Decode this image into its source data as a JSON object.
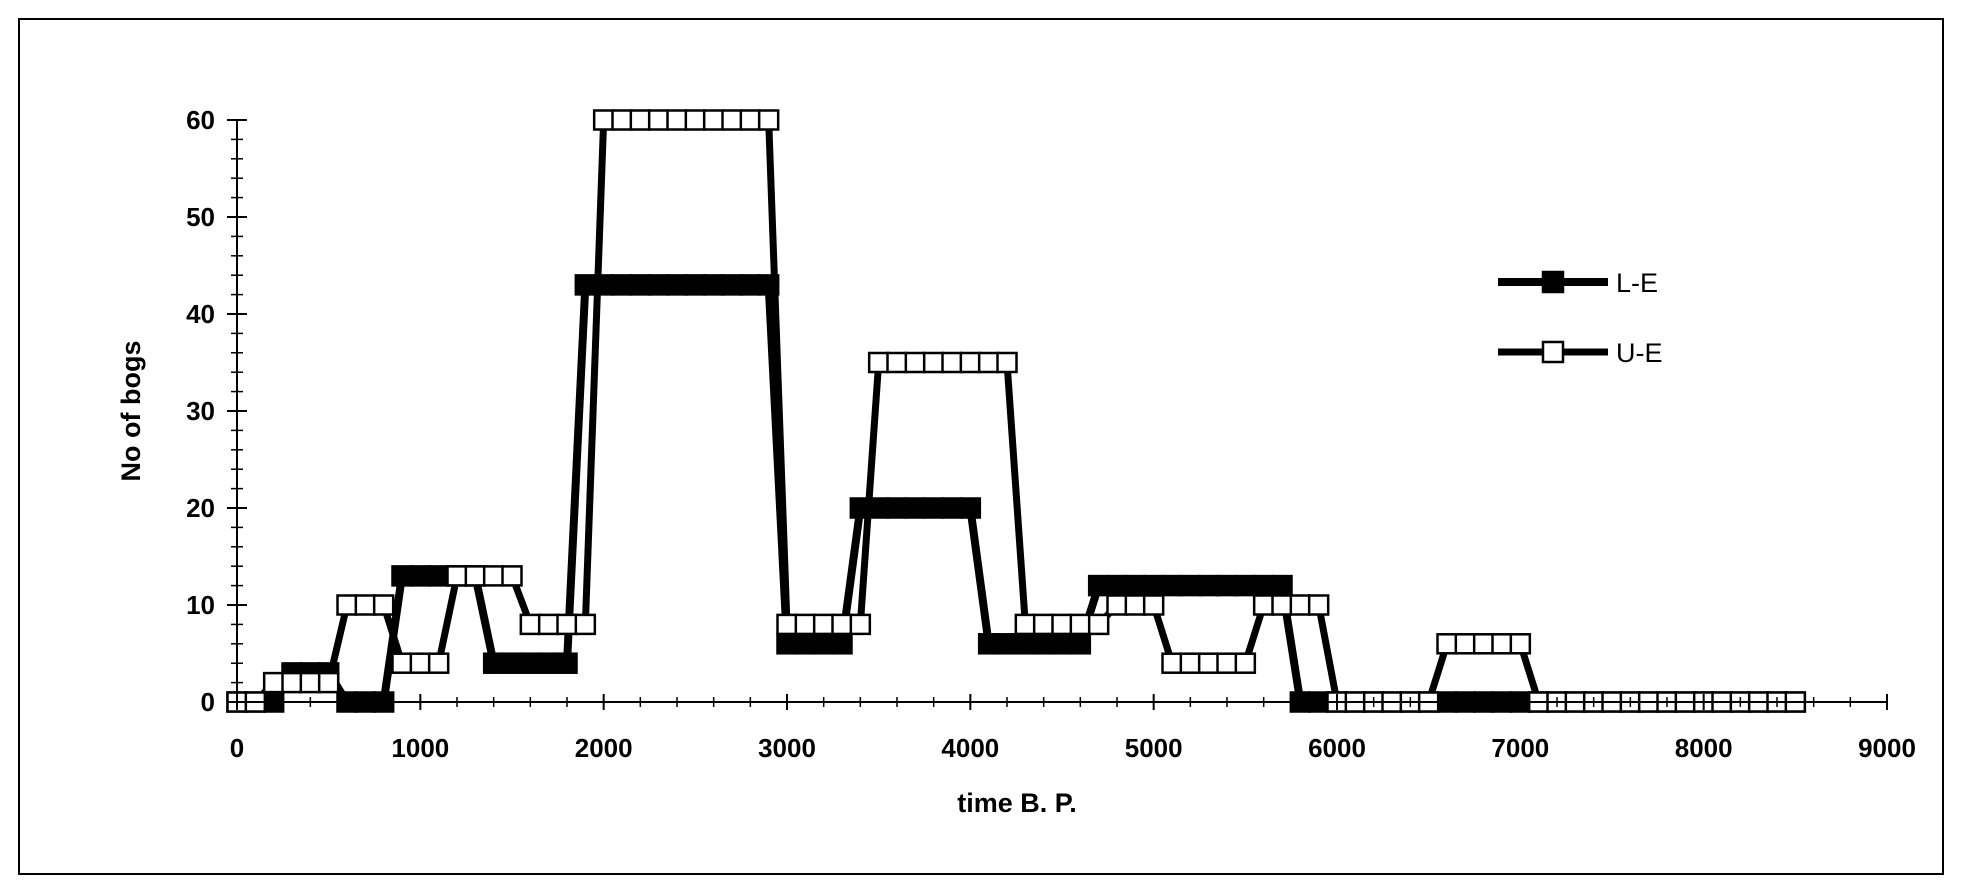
{
  "chart_data": {
    "type": "line",
    "xlabel": "time B. P.",
    "ylabel": "No of bogs",
    "xlim": [
      0,
      9000
    ],
    "ylim": [
      0,
      60
    ],
    "x_ticks": [
      0,
      1000,
      2000,
      3000,
      4000,
      5000,
      6000,
      7000,
      8000,
      9000
    ],
    "y_ticks": [
      0,
      10,
      20,
      30,
      40,
      50,
      60
    ],
    "grid": false,
    "legend_position": "right",
    "series": [
      {
        "name": "L-E",
        "color": "#000000",
        "marker": "filled-square",
        "x": [
          0,
          100,
          200,
          300,
          400,
          500,
          600,
          700,
          800,
          900,
          1000,
          1100,
          1200,
          1300,
          1400,
          1500,
          1600,
          1700,
          1800,
          1900,
          2000,
          2100,
          2200,
          2300,
          2400,
          2500,
          2600,
          2700,
          2800,
          2900,
          3000,
          3100,
          3200,
          3300,
          3400,
          3500,
          3600,
          3700,
          3800,
          3900,
          4000,
          4100,
          4200,
          4300,
          4400,
          4500,
          4600,
          4700,
          4800,
          4900,
          5000,
          5100,
          5200,
          5300,
          5400,
          5500,
          5600,
          5700,
          5800,
          5900,
          6000,
          6100,
          6200,
          6300,
          6400,
          6500,
          6600,
          6700,
          6800,
          6900,
          7000,
          7100,
          7200,
          7300,
          7400,
          7500,
          7600,
          7700,
          7800,
          7900,
          8000,
          8100,
          8200,
          8300,
          8400,
          8500
        ],
        "values": [
          0,
          0,
          0,
          3,
          3,
          3,
          0,
          0,
          0,
          13,
          13,
          13,
          13,
          13,
          4,
          4,
          4,
          4,
          4,
          43,
          43,
          43,
          43,
          43,
          43,
          43,
          43,
          43,
          43,
          43,
          6,
          6,
          6,
          6,
          20,
          20,
          20,
          20,
          20,
          20,
          20,
          6,
          6,
          6,
          6,
          6,
          6,
          12,
          12,
          12,
          12,
          12,
          12,
          12,
          12,
          12,
          12,
          12,
          0,
          0,
          0,
          0,
          0,
          0,
          0,
          0,
          0,
          0,
          0,
          0,
          0,
          0,
          0,
          0,
          0,
          0,
          0,
          0,
          0,
          0,
          0,
          0,
          0,
          0,
          0,
          0
        ]
      },
      {
        "name": "U-E",
        "color": "#000000",
        "marker": "open-square",
        "x": [
          0,
          100,
          200,
          300,
          400,
          500,
          600,
          700,
          800,
          900,
          1000,
          1100,
          1200,
          1300,
          1400,
          1500,
          1600,
          1700,
          1800,
          1900,
          2000,
          2100,
          2200,
          2300,
          2400,
          2500,
          2600,
          2700,
          2800,
          2900,
          3000,
          3100,
          3200,
          3300,
          3400,
          3500,
          3600,
          3700,
          3800,
          3900,
          4000,
          4100,
          4200,
          4300,
          4400,
          4500,
          4600,
          4700,
          4800,
          4900,
          5000,
          5100,
          5200,
          5300,
          5400,
          5500,
          5600,
          5700,
          5800,
          5900,
          6000,
          6100,
          6200,
          6300,
          6400,
          6500,
          6600,
          6700,
          6800,
          6900,
          7000,
          7100,
          7200,
          7300,
          7400,
          7500,
          7600,
          7700,
          7800,
          7900,
          8000,
          8100,
          8200,
          8300,
          8400,
          8500
        ],
        "values": [
          0,
          0,
          2,
          2,
          2,
          2,
          10,
          10,
          10,
          4,
          4,
          4,
          13,
          13,
          13,
          13,
          8,
          8,
          8,
          8,
          60,
          60,
          60,
          60,
          60,
          60,
          60,
          60,
          60,
          60,
          8,
          8,
          8,
          8,
          8,
          35,
          35,
          35,
          35,
          35,
          35,
          35,
          35,
          8,
          8,
          8,
          8,
          8,
          10,
          10,
          10,
          4,
          4,
          4,
          4,
          4,
          10,
          10,
          10,
          10,
          0,
          0,
          0,
          0,
          0,
          0,
          6,
          6,
          6,
          6,
          6,
          0,
          0,
          0,
          0,
          0,
          0,
          0,
          0,
          0,
          0,
          0,
          0,
          0,
          0,
          0
        ]
      }
    ]
  }
}
